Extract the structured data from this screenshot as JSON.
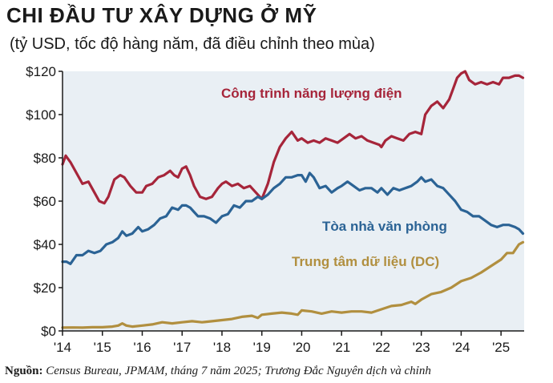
{
  "title": "CHI ĐẦU TƯ XÂY DỰNG Ở MỸ",
  "subtitle": "(tỷ USD, tốc độ hàng năm, đã điều chỉnh theo mùa)",
  "source": {
    "prefix": "Nguồn:",
    "text": "Census Bureau, JPMAM, tháng 7 năm 2025; Trương Đắc Nguyên dịch và chỉnh"
  },
  "colors": {
    "plot_bg": "#e9eff4",
    "power": "#a6253a",
    "office": "#2b6395",
    "datacenter": "#b18f3f",
    "axis": "#1a1a1a"
  },
  "chart_data": {
    "type": "line",
    "title": "CHI ĐẦU TƯ XÂY DỰNG Ở MỸ",
    "subtitle": "(tỷ USD, tốc độ hàng năm, đã điều chỉnh theo mùa)",
    "xlabel": "",
    "ylabel": "",
    "xlim": [
      2014.0,
      2025.58
    ],
    "ylim": [
      0,
      120
    ],
    "yticks": [
      0,
      20,
      40,
      60,
      80,
      100,
      120
    ],
    "ytick_labels": [
      "$0",
      "$20",
      "$40",
      "$60",
      "$80",
      "$100",
      "$120"
    ],
    "xticks": [
      2014,
      2015,
      2016,
      2017,
      2018,
      2019,
      2020,
      2021,
      2022,
      2023,
      2024,
      2025
    ],
    "xtick_labels": [
      "'14",
      "'15",
      "'16",
      "'17",
      "'18",
      "'19",
      "'20",
      "'21",
      "'22",
      "'23",
      "'24",
      "'25"
    ],
    "grid": false,
    "legend": "none",
    "series": [
      {
        "name": "Công trình năng lượng điện",
        "color": "#a6253a",
        "x": [
          2014.0,
          2014.08,
          2014.2,
          2014.35,
          2014.5,
          2014.65,
          2014.8,
          2014.92,
          2015.05,
          2015.15,
          2015.3,
          2015.45,
          2015.55,
          2015.7,
          2015.85,
          2016.0,
          2016.1,
          2016.25,
          2016.4,
          2016.55,
          2016.7,
          2016.8,
          2016.9,
          2017.0,
          2017.1,
          2017.2,
          2017.3,
          2017.45,
          2017.6,
          2017.75,
          2017.9,
          2018.0,
          2018.1,
          2018.25,
          2018.4,
          2018.55,
          2018.7,
          2018.85,
          2019.0,
          2019.15,
          2019.3,
          2019.45,
          2019.6,
          2019.75,
          2019.9,
          2020.0,
          2020.15,
          2020.3,
          2020.45,
          2020.6,
          2020.75,
          2020.9,
          2021.05,
          2021.2,
          2021.35,
          2021.5,
          2021.65,
          2021.8,
          2021.95,
          2022.0,
          2022.1,
          2022.25,
          2022.4,
          2022.55,
          2022.7,
          2022.85,
          2023.0,
          2023.1,
          2023.25,
          2023.4,
          2023.55,
          2023.7,
          2023.8,
          2023.9,
          2024.0,
          2024.1,
          2024.2,
          2024.35,
          2024.5,
          2024.65,
          2024.8,
          2024.95,
          2025.05,
          2025.2,
          2025.35,
          2025.45,
          2025.55
        ],
        "values": [
          77,
          81,
          78,
          73,
          68,
          69,
          64,
          60,
          59,
          62,
          70,
          72,
          71,
          67,
          64,
          64,
          67,
          68,
          71,
          72,
          74,
          72,
          71,
          75,
          76,
          72,
          67,
          62,
          61,
          62,
          66,
          68,
          69,
          67,
          68,
          66,
          67,
          64,
          61,
          68,
          78,
          85,
          89,
          92,
          88,
          89,
          87,
          88,
          87,
          89,
          88,
          87,
          89,
          91,
          89,
          90,
          88,
          87,
          86,
          85,
          88,
          90,
          89,
          88,
          91,
          92,
          91,
          100,
          104,
          106,
          103,
          107,
          112,
          117,
          119,
          120,
          116,
          114,
          115,
          114,
          115,
          114,
          117,
          117,
          118,
          118,
          117
        ]
      },
      {
        "name": "Tòa nhà văn phòng",
        "color": "#2b6395",
        "x": [
          2014.0,
          2014.1,
          2014.2,
          2014.35,
          2014.5,
          2014.65,
          2014.8,
          2014.95,
          2015.1,
          2015.25,
          2015.4,
          2015.5,
          2015.6,
          2015.75,
          2015.9,
          2016.0,
          2016.15,
          2016.3,
          2016.45,
          2016.6,
          2016.75,
          2016.9,
          2017.0,
          2017.1,
          2017.2,
          2017.3,
          2017.4,
          2017.55,
          2017.7,
          2017.85,
          2018.0,
          2018.15,
          2018.3,
          2018.45,
          2018.6,
          2018.75,
          2018.9,
          2019.0,
          2019.15,
          2019.3,
          2019.45,
          2019.6,
          2019.75,
          2019.9,
          2020.0,
          2020.1,
          2020.2,
          2020.3,
          2020.45,
          2020.6,
          2020.75,
          2020.9,
          2021.0,
          2021.15,
          2021.3,
          2021.45,
          2021.6,
          2021.75,
          2021.9,
          2022.0,
          2022.15,
          2022.3,
          2022.45,
          2022.6,
          2022.75,
          2022.9,
          2023.0,
          2023.1,
          2023.25,
          2023.4,
          2023.55,
          2023.7,
          2023.85,
          2024.0,
          2024.15,
          2024.3,
          2024.45,
          2024.6,
          2024.75,
          2024.9,
          2025.05,
          2025.2,
          2025.35,
          2025.45,
          2025.55
        ],
        "values": [
          32,
          32,
          31,
          35,
          35,
          37,
          36,
          37,
          40,
          41,
          43,
          46,
          44,
          45,
          48,
          46,
          47,
          49,
          52,
          53,
          57,
          56,
          58,
          58,
          57,
          55,
          53,
          53,
          52,
          50,
          53,
          54,
          58,
          57,
          60,
          60,
          62,
          61,
          63,
          66,
          68,
          71,
          71,
          72,
          72,
          69,
          73,
          71,
          66,
          67,
          64,
          66,
          67,
          69,
          67,
          65,
          66,
          66,
          64,
          66,
          63,
          66,
          65,
          66,
          67,
          69,
          71,
          69,
          70,
          67,
          66,
          63,
          60,
          56,
          55,
          53,
          53,
          51,
          49,
          48,
          49,
          49,
          48,
          47,
          45
        ]
      },
      {
        "name": "Trung tâm dữ liệu (DC)",
        "color": "#b18f3f",
        "x": [
          2014.0,
          2014.25,
          2014.5,
          2014.75,
          2015.0,
          2015.25,
          2015.4,
          2015.5,
          2015.6,
          2015.75,
          2016.0,
          2016.25,
          2016.5,
          2016.75,
          2017.0,
          2017.25,
          2017.5,
          2017.75,
          2018.0,
          2018.25,
          2018.5,
          2018.75,
          2018.9,
          2019.0,
          2019.25,
          2019.5,
          2019.75,
          2019.9,
          2020.0,
          2020.25,
          2020.5,
          2020.75,
          2021.0,
          2021.25,
          2021.5,
          2021.75,
          2022.0,
          2022.25,
          2022.5,
          2022.75,
          2022.85,
          2023.0,
          2023.25,
          2023.5,
          2023.75,
          2024.0,
          2024.25,
          2024.5,
          2024.75,
          2025.0,
          2025.15,
          2025.3,
          2025.45,
          2025.55
        ],
        "values": [
          1.5,
          1.6,
          1.5,
          1.7,
          1.7,
          2.0,
          2.5,
          3.5,
          2.5,
          2.0,
          2.5,
          3.0,
          4.0,
          3.5,
          4.0,
          4.5,
          4.0,
          4.5,
          5.0,
          5.5,
          6.5,
          7.0,
          6.0,
          7.5,
          8.0,
          8.5,
          8.0,
          7.5,
          9.5,
          9.0,
          8.0,
          9.0,
          8.5,
          9.0,
          9.0,
          8.5,
          10.0,
          11.5,
          12.0,
          13.5,
          12.5,
          14.5,
          17.0,
          18.0,
          20.0,
          23.0,
          24.5,
          27.0,
          30.0,
          33.0,
          36.0,
          36.0,
          40.0,
          41.0
        ]
      }
    ],
    "annotations": [
      {
        "text": "Công trình năng lượng điện",
        "series": "power"
      },
      {
        "text": "Tòa nhà văn phòng",
        "series": "office"
      },
      {
        "text": "Trung tâm dữ liệu (DC)",
        "series": "datacenter"
      }
    ]
  }
}
